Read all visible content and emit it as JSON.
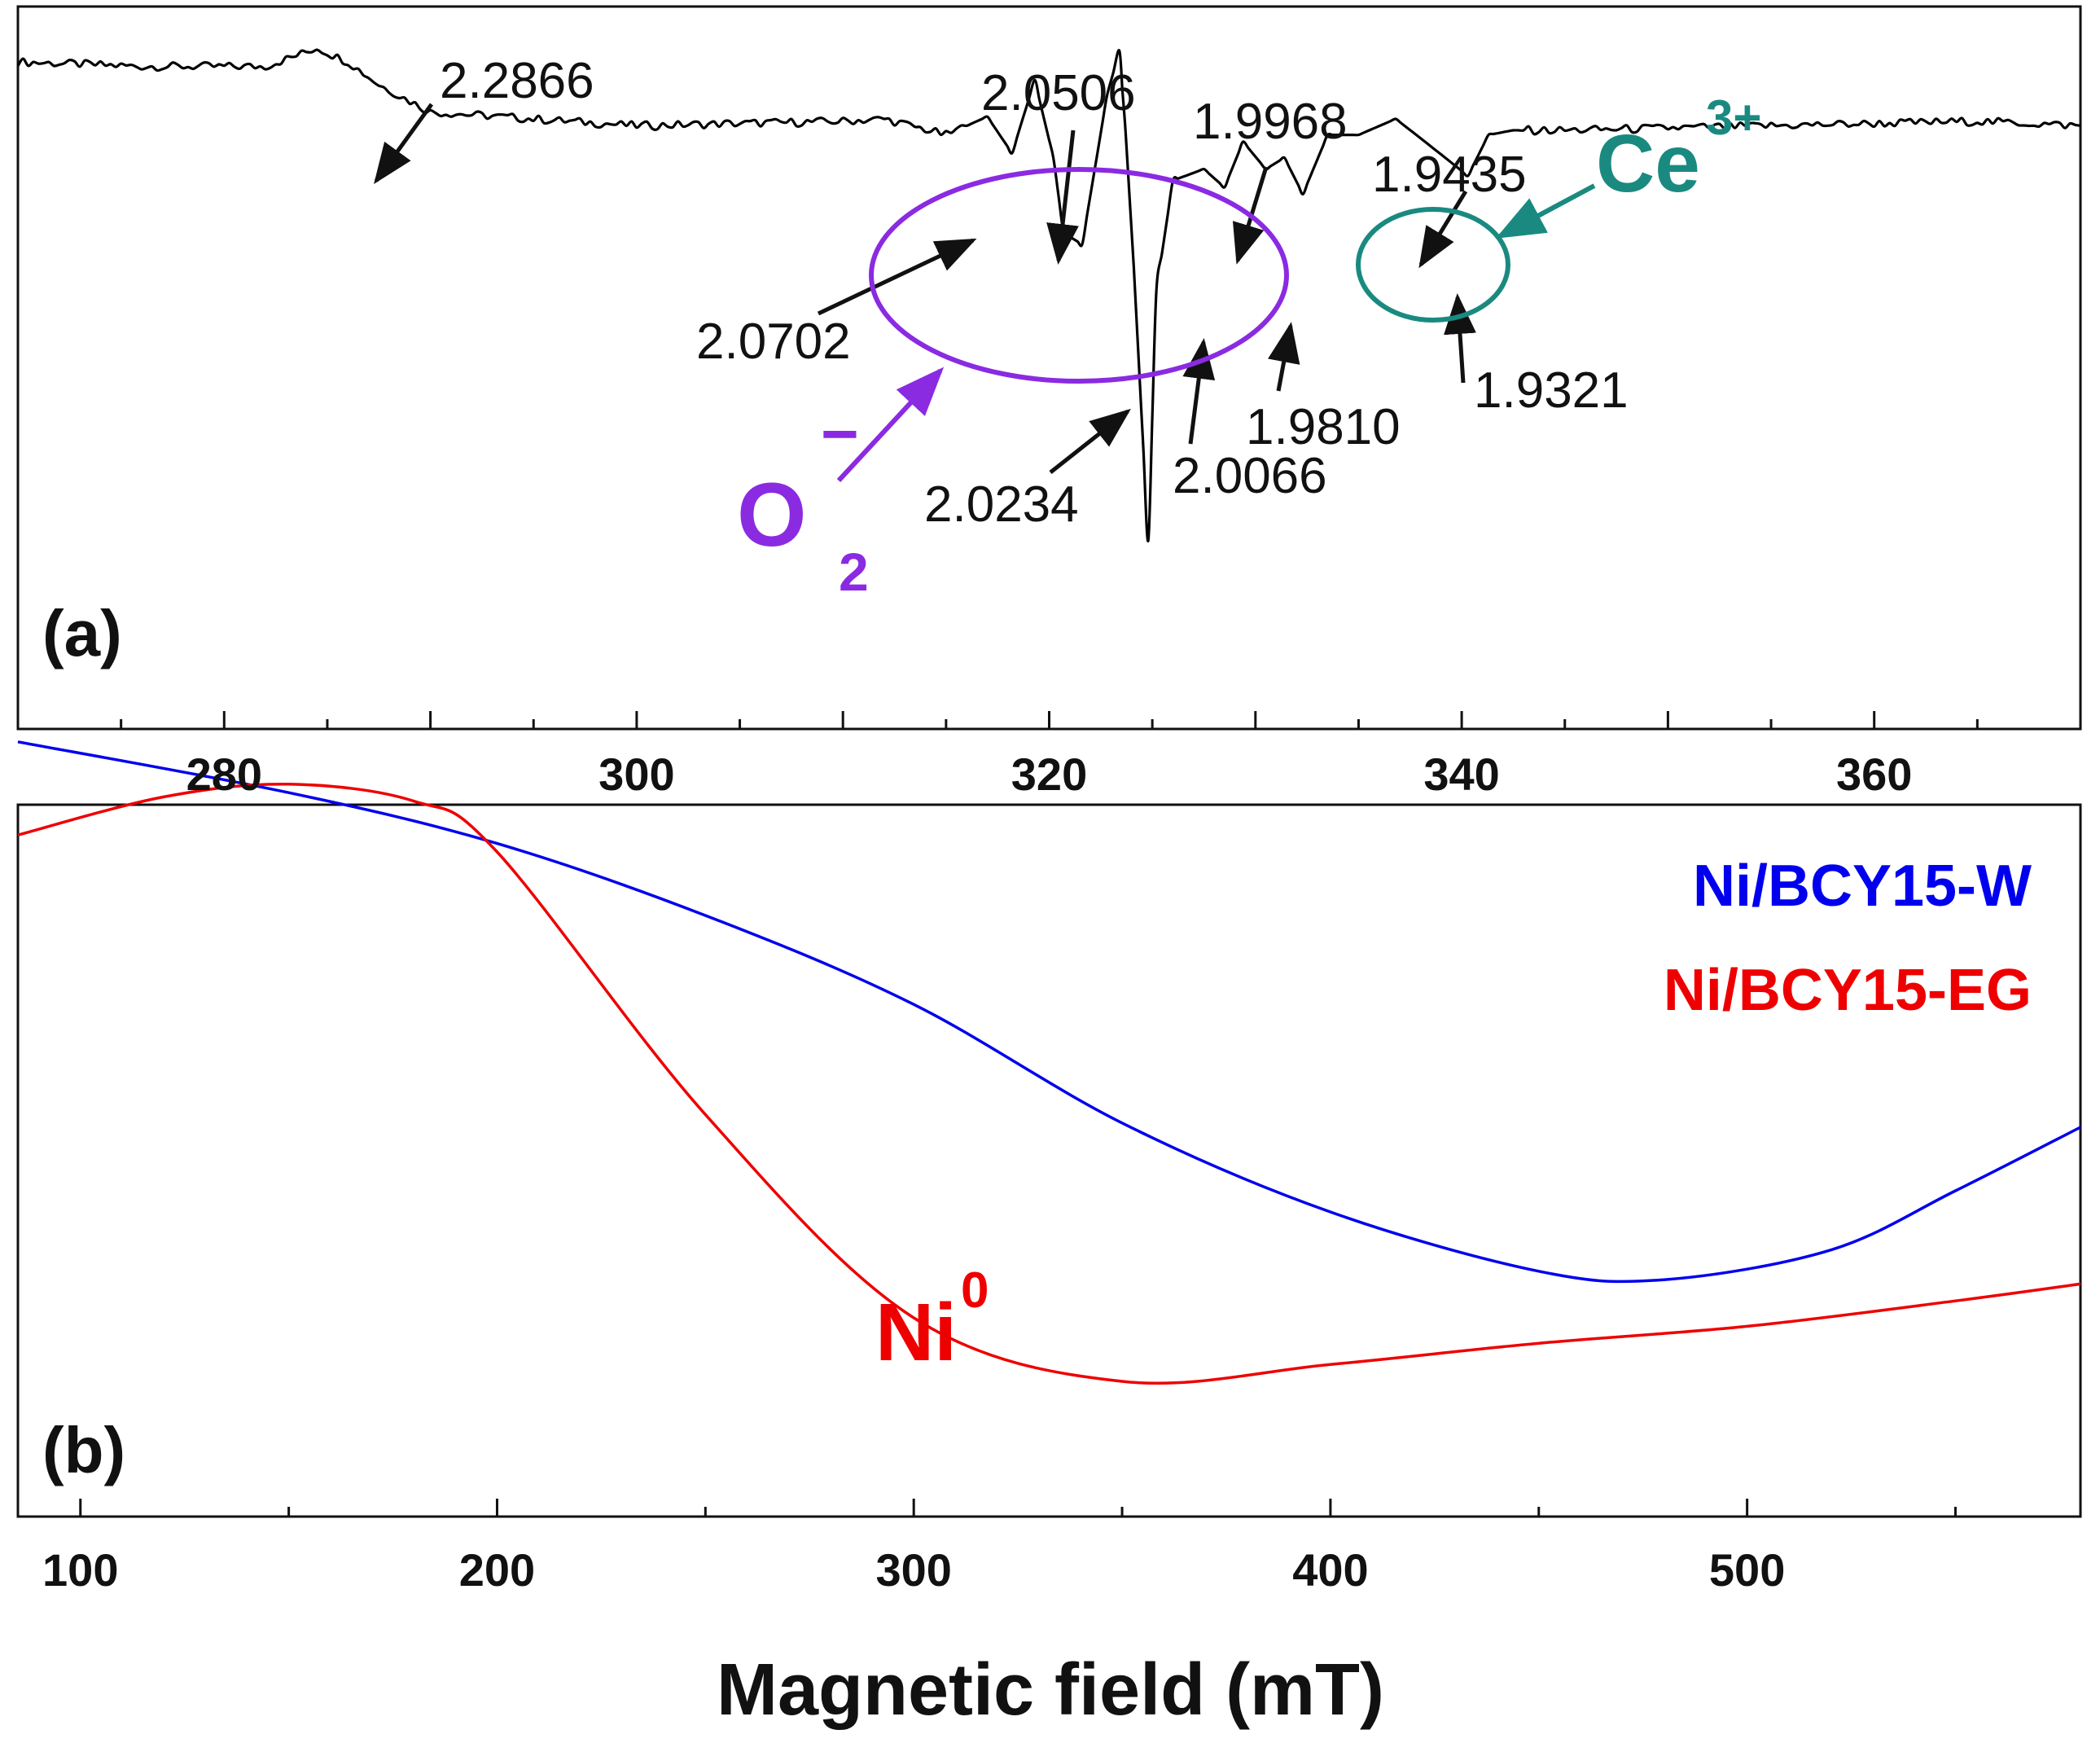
{
  "chart_data": [
    {
      "panel": "(a)",
      "type": "line",
      "x_range": [
        270,
        370
      ],
      "x_ticks": [
        280,
        300,
        320,
        340,
        360
      ],
      "y_ticks_shown": false,
      "series": [
        {
          "name": "EPR spectrum",
          "color": "#000000",
          "x": [
            270,
            276,
            282,
            284.5,
            286,
            287.5,
            290,
            300,
            310,
            312,
            315,
            317,
            318.2,
            319.3,
            320.2,
            320.7,
            321.6,
            322.8,
            323.4,
            323.7,
            324.1,
            324.8,
            325.2,
            326,
            327.5,
            328.5,
            329.4,
            330.5,
            331.4,
            332.3,
            333.5,
            335,
            336.8,
            337.8,
            339.2,
            340.3,
            341.3,
            342.5,
            345,
            355,
            365,
            370
          ],
          "y": [
            0.8,
            0.78,
            0.78,
            0.86,
            0.8,
            0.7,
            0.58,
            0.52,
            0.54,
            0.55,
            0.48,
            0.56,
            0.4,
            0.72,
            0.38,
            0.05,
            0.0,
            0.65,
            0.85,
            0.5,
            -0.1,
            -1.3,
            -0.2,
            0.28,
            0.33,
            0.25,
            0.45,
            0.33,
            0.38,
            0.22,
            0.48,
            0.48,
            0.55,
            0.48,
            0.38,
            0.3,
            0.48,
            0.5,
            0.5,
            0.52,
            0.54,
            0.52
          ]
        }
      ],
      "annotations": [
        {
          "text": "2.2866",
          "x": 287.5
        },
        {
          "text": "2.0702",
          "x": 317.4
        },
        {
          "text": "2.0506",
          "x": 320.2
        },
        {
          "text": "2.0234",
          "x": 324.1
        },
        {
          "text": "2.0066",
          "x": 327.5
        },
        {
          "text": "1.9968",
          "x": 329.4
        },
        {
          "text": "1.9810",
          "x": 331.4
        },
        {
          "text": "1.9435",
          "x": 338.4
        },
        {
          "text": "1.9321",
          "x": 340.3
        }
      ],
      "species_labels": [
        {
          "text": "O",
          "sub": "2",
          "sup": "−",
          "color": "#8a2be2"
        },
        {
          "text": "Ce",
          "sup": "3+",
          "color": "#1a8a80"
        }
      ],
      "panel_label": "(a)"
    },
    {
      "panel": "(b)",
      "type": "line",
      "x_range": [
        85,
        580
      ],
      "x_ticks": [
        100,
        200,
        300,
        400,
        500
      ],
      "xlabel": "Magnetic field (mT)",
      "y_ticks_shown": false,
      "series": [
        {
          "name": "Ni/BCY15-W",
          "color": "#0000ee",
          "x": [
            85,
            150,
            200,
            250,
            300,
            350,
            400,
            450,
            480,
            520,
            550,
            580
          ],
          "y": [
            0.96,
            0.84,
            0.72,
            0.55,
            0.34,
            0.06,
            -0.15,
            -0.29,
            -0.31,
            -0.24,
            -0.1,
            0.05
          ]
        },
        {
          "name": "Ni/BCY15-EG",
          "color": "#ee0000",
          "x": [
            85,
            120,
            150,
            180,
            200,
            250,
            300,
            350,
            400,
            450,
            500,
            550,
            580
          ],
          "y": [
            0.74,
            0.83,
            0.86,
            0.82,
            0.7,
            0.08,
            -0.4,
            -0.55,
            -0.51,
            -0.46,
            -0.42,
            -0.36,
            -0.32
          ]
        }
      ],
      "annotations": [
        {
          "text": "Ni",
          "sup": "0",
          "color": "#ee0000"
        }
      ],
      "panel_label": "(b)"
    }
  ]
}
